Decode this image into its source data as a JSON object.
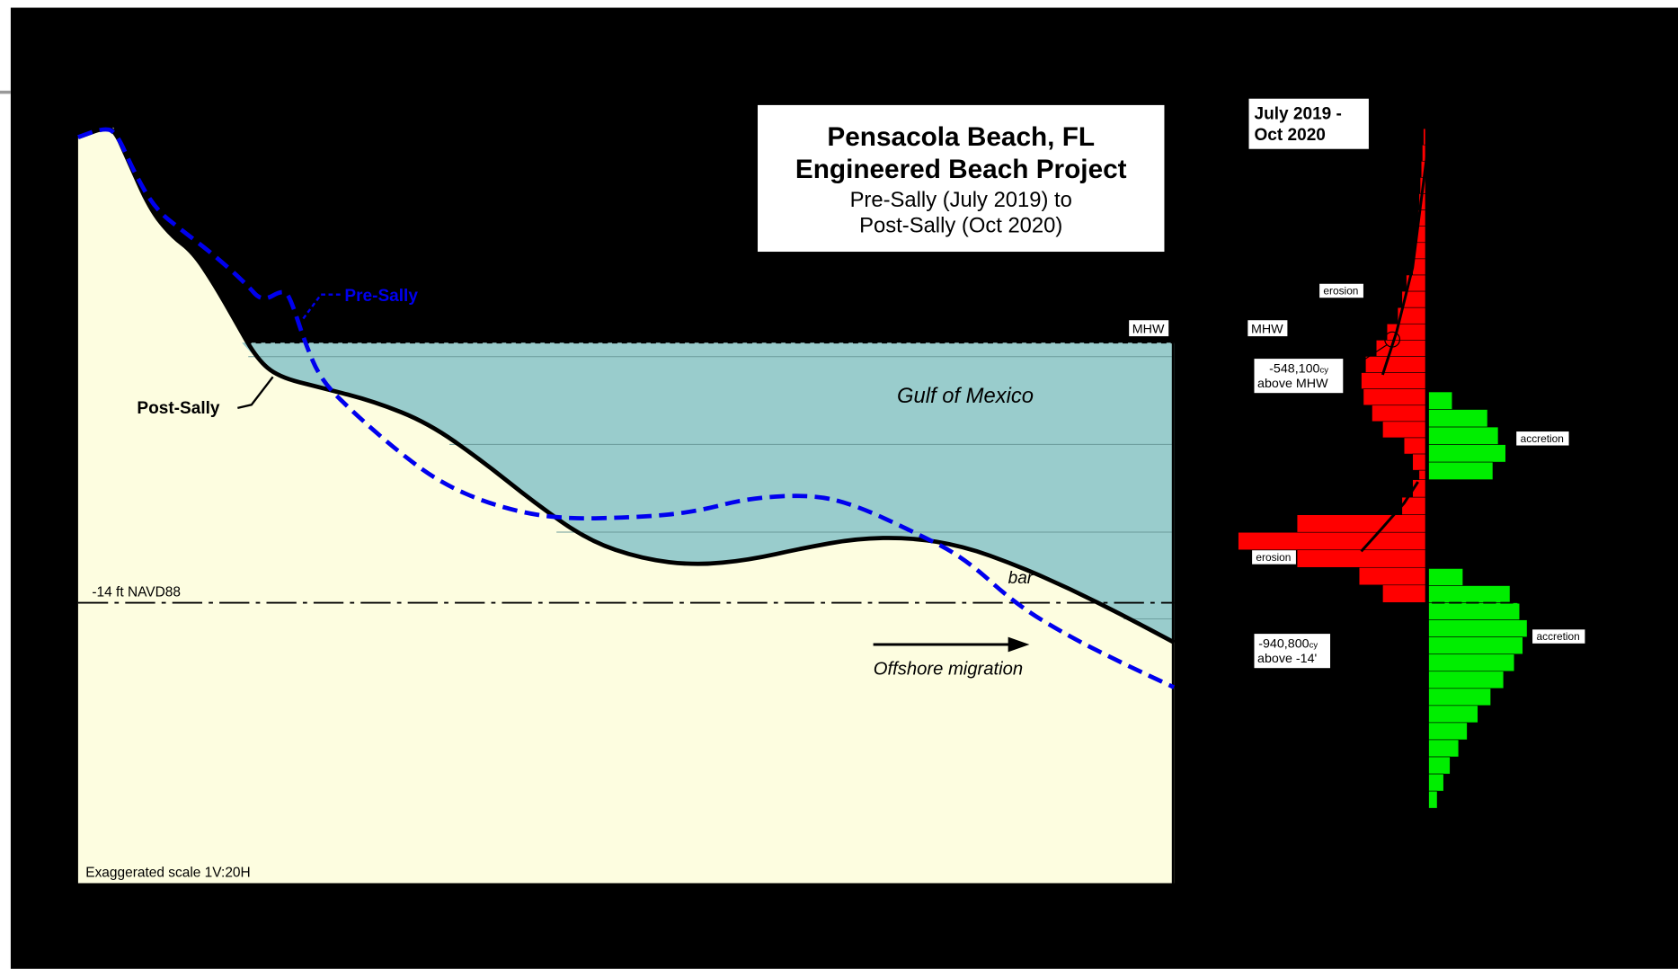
{
  "title": {
    "line1": "Pensacola Beach, FL",
    "line2": "Engineered Beach Project",
    "line3": "Pre-Sally (July 2019) to",
    "line4": "Post-Sally (Oct 2020)"
  },
  "profile": {
    "pre_label": "Pre-Sally",
    "post_label": "Post-Sally",
    "water_label": "Gulf of Mexico",
    "mhw": "MHW",
    "datum": "-14 ft NAVD88",
    "bar": "bar",
    "migration": "Offshore migration",
    "scale_note": "Exaggerated scale 1V:20H"
  },
  "histogram": {
    "period_line1": "July 2019 -",
    "period_line2": "Oct 2020",
    "mhw": "MHW",
    "erosion_upper": "erosion",
    "accretion_upper": "accretion",
    "erosion_lower": "erosion",
    "accretion_lower": "accretion",
    "note1_value": "-548,100",
    "note1_unit": "cy",
    "note1_line2": "above MHW",
    "note2_value": "-940,800",
    "note2_unit": "cy",
    "note2_line2": "above -14'"
  }
}
